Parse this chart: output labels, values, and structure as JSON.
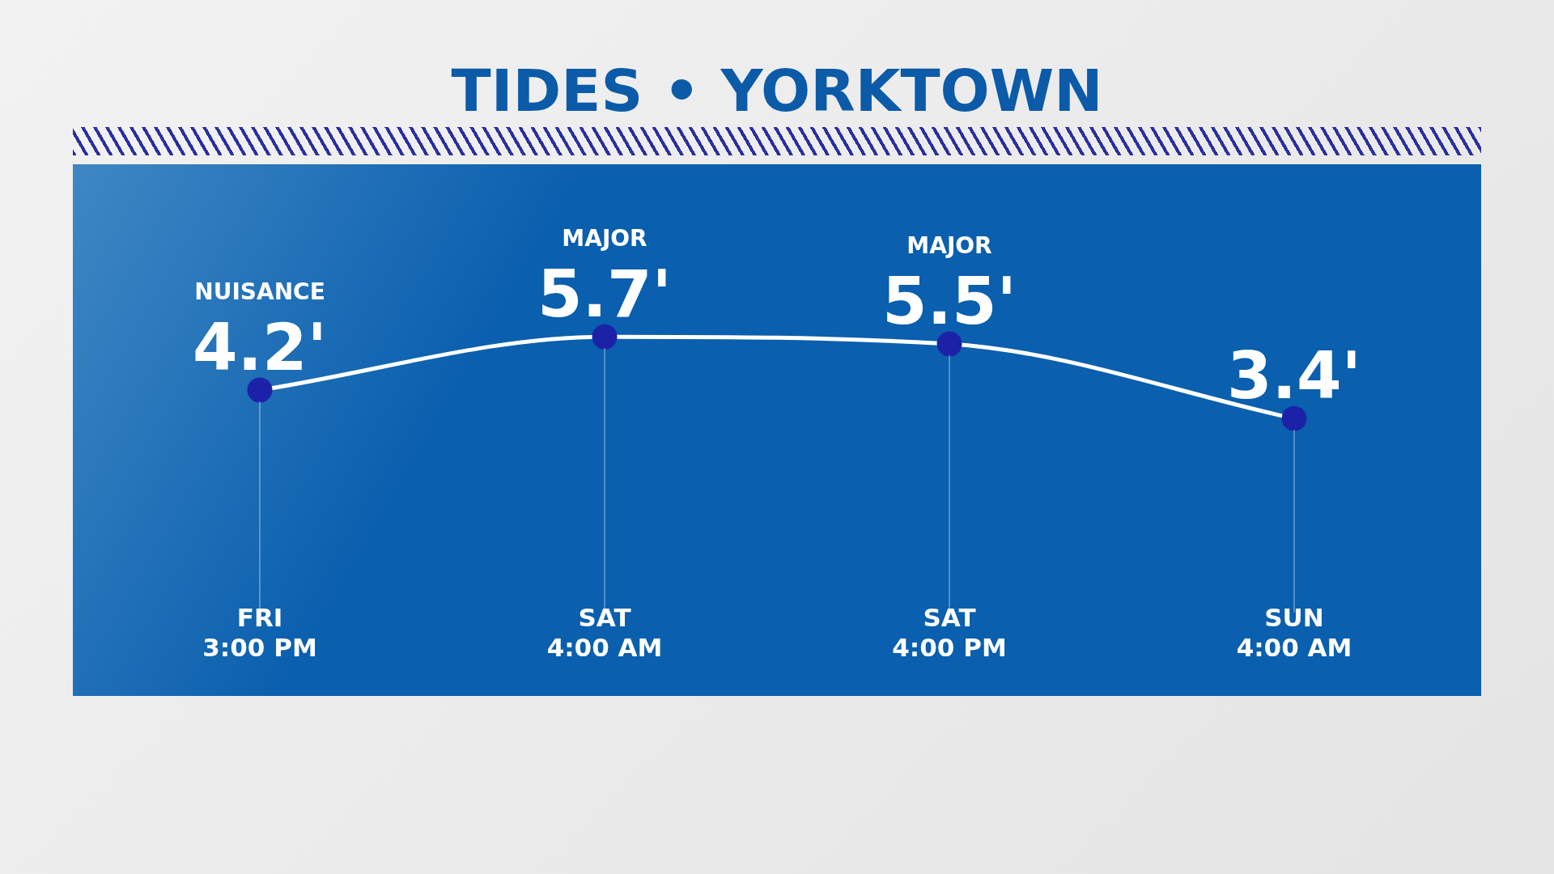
{
  "chart_data": {
    "type": "line",
    "title": "TIDES • YORKTOWN",
    "categories": [
      "FRI\n3:00 PM",
      "SAT\n4:00 AM",
      "SAT\n4:00 PM",
      "SUN\n4:00 AM"
    ],
    "series": [
      {
        "color": "#ffffff",
        "colors": [
          "#1c22a8",
          "#1c22a8",
          "#1c22a8",
          "#1c22a8"
        ],
        "values": [
          4.2,
          5.7,
          5.5,
          3.4
        ],
        "value_labels": [
          "4.2'",
          "5.7'",
          "5.5'",
          "3.4'"
        ]
      }
    ],
    "annotations": [
      "NUISANCE",
      "MAJOR",
      "MAJOR"
    ],
    "tick_labels": "x",
    "grid": "x",
    "legend": false,
    "marker": "circle"
  }
}
